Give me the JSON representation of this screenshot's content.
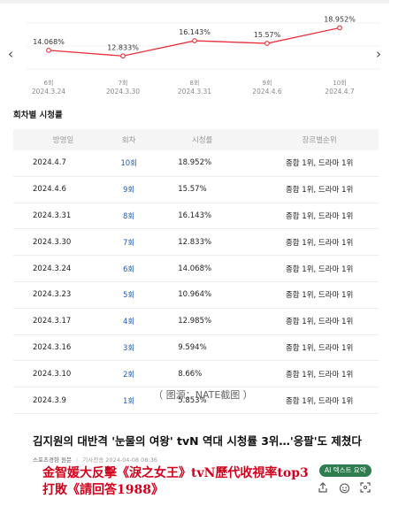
{
  "chart_data": {
    "type": "line",
    "categories": [
      "6회\n2024.3.24",
      "7회\n2024.3.30",
      "8회\n2024.3.31",
      "9회\n2024.4.6",
      "10회\n2024.4.7"
    ],
    "episodes": [
      "6회",
      "7회",
      "8회",
      "9회",
      "10회"
    ],
    "dates": [
      "2024.3.24",
      "2024.3.30",
      "2024.3.31",
      "2024.4.6",
      "2024.4.7"
    ],
    "values": [
      14.068,
      12.833,
      16.143,
      15.57,
      18.952
    ],
    "labels": [
      "14.068%",
      "12.833%",
      "16.143%",
      "15.57%",
      "18.952%"
    ],
    "ylim": [
      10,
      20
    ],
    "line_color": "#e8303c",
    "grid": true
  },
  "nav": {
    "prev": "‹",
    "next": "›"
  },
  "section_title": "회차별 시청률",
  "table": {
    "headers": [
      "방영일",
      "회차",
      "시청률",
      "장르별순위"
    ],
    "rows": [
      [
        "2024.4.7",
        "10회",
        "18.952%",
        "종합 1위, 드라마 1위"
      ],
      [
        "2024.4.6",
        "9회",
        "15.57%",
        "종합 1위, 드라마 1위"
      ],
      [
        "2024.3.31",
        "8회",
        "16.143%",
        "종합 1위, 드라마 1위"
      ],
      [
        "2024.3.30",
        "7회",
        "12.833%",
        "종합 1위, 드라마 1위"
      ],
      [
        "2024.3.24",
        "6회",
        "14.068%",
        "종합 1위, 드라마 1위"
      ],
      [
        "2024.3.23",
        "5회",
        "10.964%",
        "종합 1위, 드라마 1위"
      ],
      [
        "2024.3.17",
        "4회",
        "12.985%",
        "종합 1위, 드라마 1위"
      ],
      [
        "2024.3.16",
        "3회",
        "9.594%",
        "종합 1위, 드라마 1위"
      ],
      [
        "2024.3.10",
        "2회",
        "8.66%",
        "종합 1위, 드라마 1위"
      ],
      [
        "2024.3.9",
        "1회",
        "5.853%",
        "종합 1위, 드라마 1위"
      ]
    ]
  },
  "caption": "（ 图源：NATE截图 ）",
  "article": {
    "headline": "김지원의 대반격 '눈물의 여왕' tvN 역대 시청률 3위…'응팔'도 제쳤다",
    "source": "스포츠경향 원문",
    "divider": "|",
    "date_label": "기사전송 2024-04-08 08:36",
    "ai_badge": "AI 텍스트 요약"
  },
  "overlay": {
    "line1": "金智媛大反擊《淚之女王》tvN歷代收視率top3",
    "line2": "打敗《請回答1988》"
  }
}
